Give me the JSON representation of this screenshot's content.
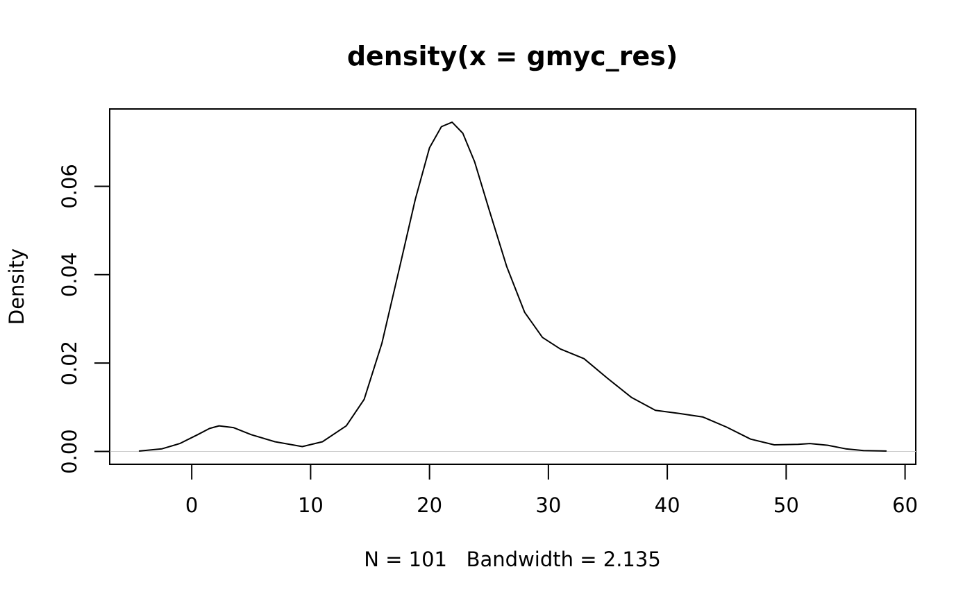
{
  "chart_data": {
    "type": "line",
    "title": "density(x = gmyc_res)",
    "xlabel": "N = 101   Bandwidth = 2.135",
    "ylabel": "Density",
    "xlim": [
      -6.9,
      60.9
    ],
    "ylim": [
      -0.0029,
      0.0775
    ],
    "x_ticks": [
      0,
      10,
      20,
      30,
      40,
      50,
      60
    ],
    "x_tick_labels": [
      "0",
      "10",
      "20",
      "30",
      "40",
      "50",
      "60"
    ],
    "y_ticks": [
      0,
      0.02,
      0.04,
      0.06
    ],
    "y_tick_labels": [
      "0.00",
      "0.02",
      "0.04",
      "0.06"
    ],
    "grid": false,
    "legend": "none",
    "baseline": 0,
    "series": [
      {
        "x": [
          -4.4,
          -2.5,
          -1,
          0.5,
          1.5,
          2.3,
          3.5,
          5,
          7,
          9.3,
          11,
          13,
          14.5,
          16,
          17.5,
          18.8,
          20,
          21,
          21.9,
          22.8,
          23.8,
          25,
          26.5,
          28,
          29.5,
          31,
          33,
          35,
          37,
          39,
          41,
          43,
          45,
          47,
          49,
          51,
          52,
          53.5,
          55,
          56.5,
          58.4
        ],
        "y": [
          0.0001,
          0.0006,
          0.0018,
          0.0038,
          0.0052,
          0.0058,
          0.0054,
          0.0038,
          0.0022,
          0.0011,
          0.0022,
          0.0058,
          0.0118,
          0.0245,
          0.0418,
          0.057,
          0.0687,
          0.0735,
          0.0745,
          0.072,
          0.0655,
          0.0548,
          0.0418,
          0.0315,
          0.0258,
          0.0232,
          0.021,
          0.0165,
          0.0122,
          0.0093,
          0.0086,
          0.0078,
          0.0055,
          0.0028,
          0.0015,
          0.0016,
          0.0018,
          0.0014,
          0.0006,
          0.0002,
          0.0001
        ]
      }
    ]
  }
}
